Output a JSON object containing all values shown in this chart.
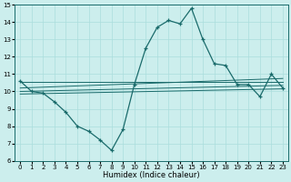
{
  "xlabel": "Humidex (Indice chaleur)",
  "xlim": [
    -0.5,
    23.5
  ],
  "ylim": [
    6,
    15
  ],
  "bg_color": "#cceeed",
  "line_color": "#1a6b6b",
  "grid_color": "#aadddd",
  "x_ticks": [
    0,
    1,
    2,
    3,
    4,
    5,
    6,
    7,
    8,
    9,
    10,
    11,
    12,
    13,
    14,
    15,
    16,
    17,
    18,
    19,
    20,
    21,
    22,
    23
  ],
  "y_ticks": [
    6,
    7,
    8,
    9,
    10,
    11,
    12,
    13,
    14,
    15
  ],
  "main_x": [
    0,
    1,
    2,
    3,
    4,
    5,
    6,
    7,
    8,
    9,
    10,
    11,
    12,
    13,
    14,
    15,
    16,
    17,
    18,
    19,
    20,
    21,
    22,
    23
  ],
  "main_y": [
    10.6,
    10.0,
    9.9,
    9.4,
    8.8,
    8.0,
    7.7,
    7.2,
    6.6,
    7.8,
    10.4,
    12.5,
    13.7,
    14.1,
    13.9,
    14.8,
    13.0,
    11.6,
    11.5,
    10.4,
    10.4,
    9.7,
    11.0,
    10.2
  ],
  "line1_x": [
    0,
    23
  ],
  "line1_y": [
    10.55,
    10.55
  ],
  "line2_x": [
    0,
    23
  ],
  "line2_y": [
    10.2,
    10.75
  ],
  "line3_x": [
    0,
    23
  ],
  "line3_y": [
    10.0,
    10.35
  ],
  "line4_x": [
    0,
    23
  ],
  "line4_y": [
    9.85,
    10.15
  ]
}
